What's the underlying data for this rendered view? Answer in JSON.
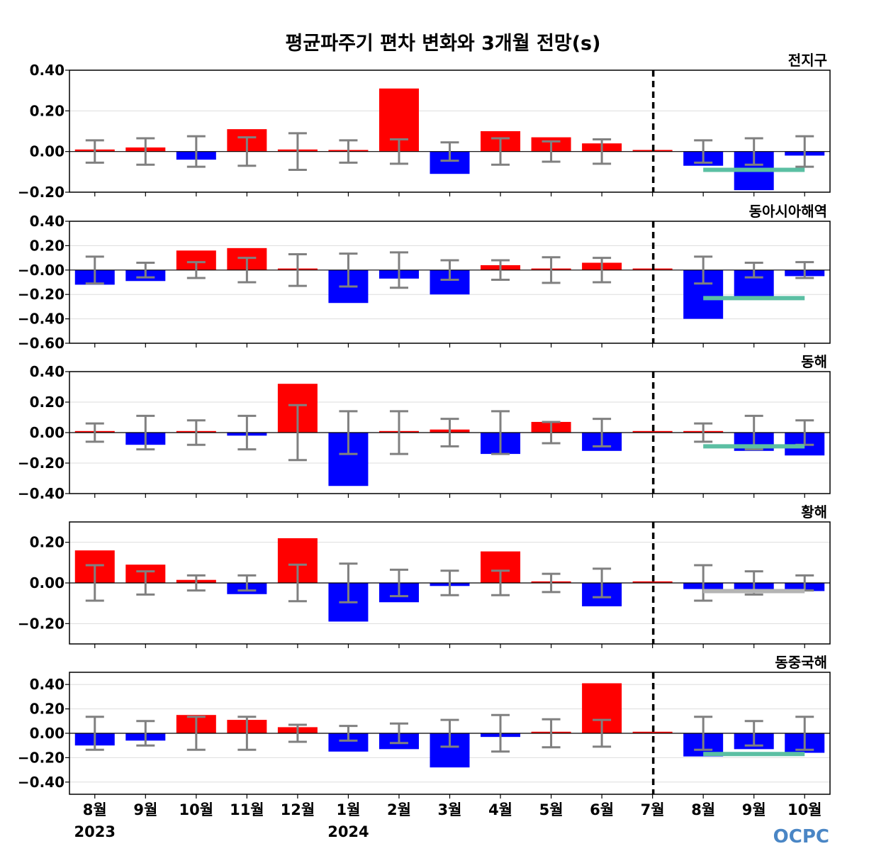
{
  "title": "평균파주기 편차 변화와 3개월 전망(s)",
  "logo": "OCPC",
  "colors": {
    "positive": "#ff0000",
    "negative": "#0000ff",
    "error_bar": "#808080",
    "outlook_band": "#5bbfa3",
    "outlook_band_gray": "#b4b4b4",
    "grid": "#dddddd"
  },
  "chart_data": {
    "type": "bar",
    "categories": [
      "8월",
      "9월",
      "10월",
      "11월",
      "12월",
      "1월",
      "2월",
      "3월",
      "4월",
      "5월",
      "6월",
      "7월",
      "8월",
      "9월",
      "10월"
    ],
    "year_labels": [
      {
        "category_index": 0,
        "label": "2023"
      },
      {
        "category_index": 5,
        "label": "2024"
      }
    ],
    "forecast_divider_after_index": 11,
    "panels": [
      {
        "region": "전지구",
        "ylim": [
          -0.2,
          0.4
        ],
        "yticks": [
          0.4,
          0.2,
          0.0,
          -0.2
        ],
        "ytick_labels": [
          "0.40",
          "0.20",
          "0.00",
          "−0.20"
        ],
        "values": [
          0.01,
          0.02,
          -0.04,
          0.11,
          0.01,
          0.0,
          0.31,
          -0.11,
          0.1,
          0.07,
          0.04,
          0.0,
          -0.07,
          -0.19,
          -0.02
        ],
        "error_bars": [
          0.055,
          0.065,
          0.075,
          0.07,
          0.09,
          0.055,
          0.06,
          0.045,
          0.065,
          0.05,
          0.06,
          null,
          0.055,
          0.065,
          0.075
        ],
        "outlook": {
          "from_index": 12,
          "to_index": 14,
          "value": -0.09,
          "color": "teal"
        }
      },
      {
        "region": "동아시아해역",
        "ylim": [
          -0.6,
          0.4
        ],
        "yticks": [
          0.4,
          0.2,
          0.0,
          -0.2,
          -0.4,
          -0.6
        ],
        "ytick_labels": [
          "0.40",
          "0.20",
          "−0.00",
          "−0.20",
          "−0.40",
          "−0.60"
        ],
        "values": [
          -0.12,
          -0.09,
          0.16,
          0.18,
          0.0,
          -0.27,
          -0.07,
          -0.2,
          0.04,
          0.0,
          0.06,
          0.0,
          -0.4,
          -0.22,
          -0.05
        ],
        "error_bars": [
          0.11,
          0.06,
          0.065,
          0.1,
          0.13,
          0.135,
          0.145,
          0.08,
          0.08,
          0.105,
          0.1,
          null,
          0.11,
          0.06,
          0.065
        ],
        "outlook": {
          "from_index": 12,
          "to_index": 14,
          "value": -0.23,
          "color": "teal"
        }
      },
      {
        "region": "동해",
        "ylim": [
          -0.4,
          0.4
        ],
        "yticks": [
          0.4,
          0.2,
          0.0,
          -0.2,
          -0.4
        ],
        "ytick_labels": [
          "0.40",
          "0.20",
          "0.00",
          "−0.20",
          "−0.40"
        ],
        "values": [
          0.01,
          -0.08,
          0.005,
          -0.02,
          0.32,
          -0.35,
          0.0,
          0.02,
          -0.14,
          0.07,
          -0.12,
          0.0,
          0.0,
          -0.12,
          -0.15
        ],
        "error_bars": [
          0.06,
          0.11,
          0.08,
          0.11,
          0.18,
          0.14,
          0.14,
          0.09,
          0.14,
          0.07,
          0.09,
          null,
          0.06,
          0.11,
          0.08
        ],
        "outlook": {
          "from_index": 12,
          "to_index": 14,
          "value": -0.09,
          "color": "teal"
        }
      },
      {
        "region": "황해",
        "ylim": [
          -0.3,
          0.3
        ],
        "yticks": [
          0.2,
          0.0,
          -0.2
        ],
        "ytick_labels": [
          "0.20",
          "0.00",
          "−0.20"
        ],
        "values": [
          0.16,
          0.09,
          0.015,
          -0.055,
          0.22,
          -0.19,
          -0.095,
          -0.015,
          0.155,
          0.005,
          -0.115,
          0.0,
          -0.03,
          -0.04,
          -0.04
        ],
        "error_bars": [
          0.087,
          0.057,
          0.037,
          0.037,
          0.09,
          0.095,
          0.065,
          0.06,
          0.06,
          0.045,
          0.07,
          null,
          0.087,
          0.057,
          0.037
        ],
        "outlook": {
          "from_index": 12,
          "to_index": 14,
          "value": -0.04,
          "color": "gray"
        }
      },
      {
        "region": "동중국해",
        "ylim": [
          -0.5,
          0.5
        ],
        "yticks": [
          0.4,
          0.2,
          0.0,
          -0.2,
          -0.4
        ],
        "ytick_labels": [
          "0.40",
          "0.20",
          "0.00",
          "−0.20",
          "−0.40"
        ],
        "values": [
          -0.1,
          -0.06,
          0.15,
          0.11,
          0.05,
          -0.15,
          -0.13,
          -0.28,
          -0.03,
          0.01,
          0.41,
          0.0,
          -0.19,
          -0.13,
          -0.16
        ],
        "error_bars": [
          0.135,
          0.1,
          0.135,
          0.135,
          0.07,
          0.06,
          0.08,
          0.11,
          0.15,
          0.115,
          0.11,
          null,
          0.135,
          0.1,
          0.135
        ],
        "outlook": {
          "from_index": 12,
          "to_index": 14,
          "value": -0.17,
          "color": "teal"
        }
      }
    ]
  }
}
